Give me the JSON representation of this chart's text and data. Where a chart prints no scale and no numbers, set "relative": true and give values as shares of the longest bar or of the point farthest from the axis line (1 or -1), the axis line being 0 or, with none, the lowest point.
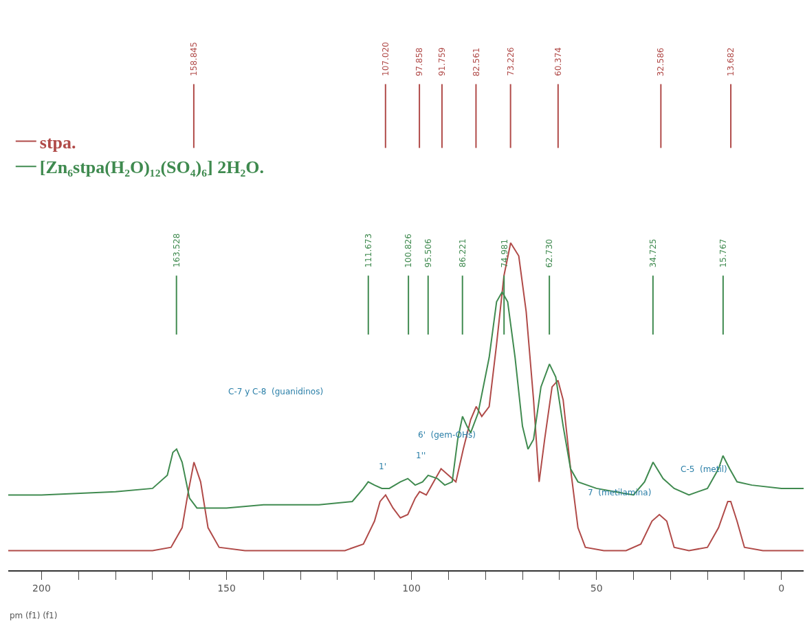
{
  "chart_data": {
    "type": "line",
    "relative": true,
    "xlabel": "pm (f1) (f1)",
    "xlim": [
      209,
      -6
    ],
    "xticks": [
      {
        "value": 200,
        "label": "200"
      },
      {
        "value": 190,
        "label": null
      },
      {
        "value": 180,
        "label": null
      },
      {
        "value": 170,
        "label": null
      },
      {
        "value": 160,
        "label": null
      },
      150,
      {
        "value": 140,
        "label": null
      },
      {
        "value": 130,
        "label": null
      },
      {
        "value": 120,
        "label": null
      },
      {
        "value": 110,
        "label": null
      },
      100,
      {
        "value": 90,
        "label": null
      },
      {
        "value": 80,
        "label": null
      },
      {
        "value": 70,
        "label": null
      },
      {
        "value": 60,
        "label": null
      },
      50,
      {
        "value": 40,
        "label": null
      },
      {
        "value": 30,
        "label": null
      },
      {
        "value": 20,
        "label": null
      },
      {
        "value": 10,
        "label": null
      },
      0
    ],
    "grid": false,
    "legend": "top left",
    "tick_labels": "x",
    "series": [
      {
        "name": "stpa.",
        "color": "#b04a48",
        "x": [
          209,
          200,
          180,
          170,
          165,
          162,
          160.5,
          158.8,
          157,
          155,
          152,
          145,
          130,
          118,
          113,
          110,
          108.5,
          107,
          105,
          103,
          101,
          99,
          97.8,
          96,
          94,
          92,
          90,
          88,
          86,
          84,
          82.5,
          81,
          79,
          77,
          75,
          73.2,
          71,
          69,
          67,
          65.5,
          64,
          62,
          60.4,
          59,
          57,
          55,
          53,
          48,
          42,
          38,
          35,
          33,
          31,
          29,
          25,
          20,
          17,
          14.5,
          13.7,
          12,
          10,
          5,
          0,
          -6
        ],
        "values": [
          0.06,
          0.06,
          0.06,
          0.06,
          0.07,
          0.13,
          0.23,
          0.33,
          0.27,
          0.13,
          0.07,
          0.06,
          0.06,
          0.06,
          0.08,
          0.15,
          0.21,
          0.23,
          0.19,
          0.16,
          0.17,
          0.22,
          0.24,
          0.23,
          0.27,
          0.31,
          0.29,
          0.27,
          0.37,
          0.46,
          0.5,
          0.47,
          0.5,
          0.69,
          0.9,
          1.0,
          0.96,
          0.79,
          0.52,
          0.27,
          0.4,
          0.56,
          0.58,
          0.52,
          0.31,
          0.13,
          0.07,
          0.06,
          0.06,
          0.08,
          0.15,
          0.17,
          0.15,
          0.07,
          0.06,
          0.07,
          0.13,
          0.21,
          0.21,
          0.15,
          0.07,
          0.06,
          0.06,
          0.06
        ]
      },
      {
        "name": "[Zn₆stpa(H₂O)₁₂(SO₄)₆] 2H₂O.",
        "color": "#3f8a4f",
        "x": [
          209,
          200,
          180,
          170,
          166,
          164.5,
          163.5,
          162,
          160,
          158,
          150,
          140,
          125,
          116,
          113,
          111.7,
          110,
          108,
          106,
          103,
          101,
          99,
          97,
          95.5,
          93,
          91,
          89,
          87.5,
          86.2,
          85,
          84,
          82,
          79,
          77,
          75.5,
          74,
          72,
          70,
          68.5,
          67,
          65,
          62.7,
          61,
          59,
          57,
          55,
          50,
          45,
          40,
          37,
          34.7,
          32,
          29,
          25,
          20,
          17,
          15.8,
          14,
          12,
          8,
          0,
          -6
        ],
        "values": [
          0.23,
          0.23,
          0.24,
          0.25,
          0.29,
          0.36,
          0.37,
          0.33,
          0.22,
          0.19,
          0.19,
          0.2,
          0.2,
          0.21,
          0.25,
          0.27,
          0.26,
          0.25,
          0.25,
          0.27,
          0.28,
          0.26,
          0.27,
          0.29,
          0.28,
          0.26,
          0.27,
          0.4,
          0.47,
          0.44,
          0.42,
          0.48,
          0.65,
          0.82,
          0.85,
          0.82,
          0.65,
          0.44,
          0.37,
          0.4,
          0.56,
          0.63,
          0.59,
          0.44,
          0.31,
          0.27,
          0.25,
          0.24,
          0.23,
          0.27,
          0.33,
          0.28,
          0.25,
          0.23,
          0.25,
          0.31,
          0.35,
          0.31,
          0.27,
          0.26,
          0.25,
          0.25
        ]
      }
    ],
    "ref_lines": [
      {
        "axis": "x",
        "value": 158.845,
        "label": "158.845",
        "color": "#b04a48"
      },
      {
        "axis": "x",
        "value": 107.02,
        "label": "107.020",
        "color": "#b04a48"
      },
      {
        "axis": "x",
        "value": 97.858,
        "label": "97.858",
        "color": "#b04a48"
      },
      {
        "axis": "x",
        "value": 91.759,
        "label": "91.759",
        "color": "#b04a48"
      },
      {
        "axis": "x",
        "value": 82.561,
        "label": "82.561",
        "color": "#b04a48"
      },
      {
        "axis": "x",
        "value": 73.226,
        "label": "73.226",
        "color": "#b04a48"
      },
      {
        "axis": "x",
        "value": 60.374,
        "label": "60.374",
        "color": "#b04a48"
      },
      {
        "axis": "x",
        "value": 32.586,
        "label": "32.586",
        "color": "#b04a48"
      },
      {
        "axis": "x",
        "value": 13.682,
        "label": "13.682",
        "color": "#b04a48"
      },
      {
        "axis": "x",
        "value": 163.528,
        "label": "163.528",
        "color": "#3f8a4f"
      },
      {
        "axis": "x",
        "value": 111.673,
        "label": "111.673",
        "color": "#3f8a4f"
      },
      {
        "axis": "x",
        "value": 100.826,
        "label": "100.826",
        "color": "#3f8a4f"
      },
      {
        "axis": "x",
        "value": 95.506,
        "label": "95.506",
        "color": "#3f8a4f"
      },
      {
        "axis": "x",
        "value": 86.221,
        "label": "86.221",
        "color": "#3f8a4f"
      },
      {
        "axis": "x",
        "value": 74.981,
        "label": "74.981",
        "color": "#3f8a4f"
      },
      {
        "axis": "x",
        "value": 62.73,
        "label": "62.730",
        "color": "#3f8a4f"
      },
      {
        "axis": "x",
        "value": 34.725,
        "label": "34.725",
        "color": "#3f8a4f"
      },
      {
        "axis": "x",
        "value": 15.767,
        "label": "15.767",
        "color": "#3f8a4f"
      }
    ],
    "annotations": [
      "C-7 y C-8  (guanidinos)",
      "6'  (gem-OHs)",
      "1''",
      "1'",
      "7  (metilamina)",
      "C-5  (metil)"
    ]
  }
}
